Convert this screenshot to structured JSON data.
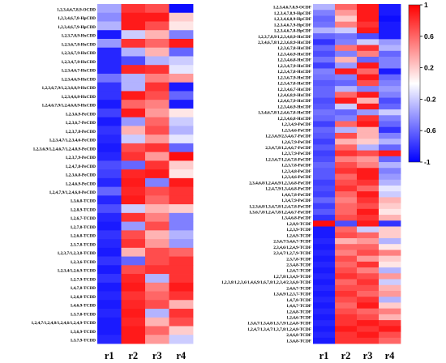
{
  "colors": {
    "low": "#0000ff",
    "mid": "#ffffff",
    "high": "#ff0000"
  },
  "chart_data": [
    {
      "type": "heatmap",
      "x": [
        "r1",
        "r2",
        "r3",
        "r4"
      ],
      "y": [
        "1,2,3,4,6,7,8,9-OCDD",
        "1,2,3,4,6,7,8-HpCDD",
        "1,2,3,4,6,7,9-HpCDD",
        "1,2,3,7,8,9-HxCDD",
        "1,2,3,6,7,8-HxCDD",
        "1,2,3,6,7,9-HxCDD",
        "1,2,3,4,7,8-HxCDD",
        "1,2,3,4,6,7-HxCDD",
        "1,2,3,4,6,9-HxCDD",
        "1,2,3,6,7,9/1,2,3,6,8,9-HxCDD",
        "1,2,3,4,6,8-HxCDD",
        "1,2,4,6,7,9/1,2,4,6,8,9-HxCDD",
        "1,2,3,6,9-PeCDD",
        "1,2,3,6,7-PeCDD",
        "1,2,3,7,8-PeCDD",
        "1,2,3,4,7/1,2,3,4,6-PeCDD",
        "1,2,3,6,9/1,2,4,6,7/1,2,4,8,9-PeCDD",
        "1,2,3,7,9-PeCDD",
        "1,2,4,7,8-PeCDD",
        "1,2,3,6,8-PeCDD",
        "1,2,4,6,9-PeCDD",
        "1,2,4,7,9/1,2,4,6,8-PeCDD",
        "1,3,6,8-TCDD",
        "1,2,8,9-TCDD",
        "1,2,6,7-TCDD",
        "1,2,7,8-TCDD",
        "1,2,6,8-TCDD",
        "2,3,7,8-TCDD",
        "1,2,3,7/1,2,3,8-TCDD",
        "1,2,3,6-TCDD",
        "1,2,3,4/1,2,6,9-TCDD",
        "1,2,7,9-TCDD",
        "1,4,7,8-TCDD",
        "1,2,6,8-TCDD",
        "1,4,6,9-TCDD",
        "1,3,7,8-TCDD",
        "1,2,4,7/1,2,4,8/1,2,4,6/1,2,4,9-TCDD",
        "1,3,6,9-TCDD",
        "1,3,7,9-TCDD"
      ],
      "values": [
        [
          -0.35,
          0.8,
          0.7,
          -0.95
        ],
        [
          -0.45,
          0.9,
          0.9,
          0.2
        ],
        [
          -0.3,
          0.9,
          0.7,
          0.1
        ],
        [
          -0.9,
          -0.2,
          0.3,
          -0.5
        ],
        [
          -0.4,
          0.8,
          0.6,
          0.9
        ],
        [
          -0.85,
          -0.3,
          0.3,
          -0.6
        ],
        [
          -0.85,
          -0.7,
          -0.3,
          -0.2
        ],
        [
          -0.85,
          0.85,
          0.8,
          -0.1
        ],
        [
          -0.55,
          -0.3,
          0.5,
          0.4
        ],
        [
          -0.8,
          -0.3,
          0.8,
          -0.9
        ],
        [
          -0.8,
          0.9,
          0.7,
          -0.6
        ],
        [
          -0.9,
          0.6,
          0.5,
          -0.9
        ],
        [
          -0.75,
          0.9,
          0.4,
          0.1
        ],
        [
          -0.9,
          -0.4,
          0.6,
          -0.2
        ],
        [
          -0.8,
          0.3,
          0.7,
          -0.3
        ],
        [
          -0.85,
          -0.2,
          0.4,
          -0.1
        ],
        [
          -0.9,
          0.7,
          0.8,
          -0.6
        ],
        [
          -0.85,
          0.8,
          0.4,
          0.95
        ],
        [
          -0.7,
          -0.6,
          0.8,
          0.2
        ],
        [
          -0.75,
          0.85,
          0.9,
          0.1
        ],
        [
          -0.85,
          0.9,
          -0.5,
          0.9
        ],
        [
          -0.6,
          0.85,
          0.7,
          0.8
        ],
        [
          -0.85,
          0.9,
          0.6,
          0.8
        ],
        [
          -0.7,
          -0.2,
          0.3,
          0.2
        ],
        [
          -0.85,
          0.8,
          0.5,
          -0.5
        ],
        [
          -0.9,
          -0.4,
          0.7,
          -0.5
        ],
        [
          -0.8,
          0.7,
          0.3,
          -0.3
        ],
        [
          -0.85,
          0.8,
          0.4,
          -0.4
        ],
        [
          -0.9,
          0.3,
          0.7,
          0.6
        ],
        [
          -0.8,
          -0.6,
          0.7,
          0.8
        ],
        [
          -0.9,
          0.7,
          0.8,
          0.8
        ],
        [
          -0.8,
          0.85,
          -0.3,
          0.8
        ],
        [
          -0.9,
          0.9,
          0.5,
          0.9
        ],
        [
          -0.85,
          0.8,
          0.6,
          0.8
        ],
        [
          -0.9,
          0.85,
          0.7,
          0.3
        ],
        [
          -0.85,
          0.9,
          -0.3,
          0.8
        ],
        [
          -0.9,
          0.85,
          0.3,
          0.7
        ],
        [
          -0.9,
          0.9,
          0.6,
          0.2
        ],
        [
          -0.85,
          0.9,
          0.4,
          -0.2
        ]
      ]
    },
    {
      "type": "heatmap",
      "x": [
        "r1",
        "r2",
        "r3",
        "r4"
      ],
      "y": [
        "1,2,3,4,6,7,8,9-OCDF",
        "1,2,3,4,7,8,9-HpCDF",
        "1,2,3,4,6,8,9-HpCDF",
        "1,2,3,4,6,7,9-HpCDF",
        "1,2,3,4,6,7,8-HpCDF",
        "1,2,3,7,8,9/1,2,3,4,8,9-HxCDF",
        "2,3,4,6,7,8/1,2,3,6,8,9-HxCDF",
        "1,2,3,6,7,8-HxCDF",
        "1,2,3,4,6,9-HxCDF",
        "1,2,3,4,6,8-HxCDF",
        "1,2,3,4,7,9-HxCDF",
        "1,2,3,4,7,8-HxCDF",
        "1,2,3,6,7,9-HxCDF",
        "1,2,3,4,7,8-HxCDF",
        "1,2,3,4,6,7-HxCDF",
        "1,2,4,6,8,9-HxCDF",
        "1,2,4,6,7,9-HxCDF",
        "1,2,3,4,6,9-HxCDF",
        "1,3,4,6,7,8/1,2,4,6,7,8-HxCDF",
        "1,2,3,4,6,8-HxCDF",
        "1,2,3,4,9-PeCDF",
        "1,2,3,4,6-PeCDF",
        "1,2,3,6,9/2,3,4,6,7-PeCDF",
        "1,2,6,7,9-PeCDF",
        "2,3,4,7,8/1,2,4,6,7-PeCDF",
        "1,2,3,7,9-PeCDF",
        "1,2,3,6,7/1,2,6,7,8-PeCDF",
        "1,2,3,7,8-PeCDF",
        "1,2,3,4,8-PeCDF",
        "1,2,3,4,6-PeCDF",
        "2,3,4,6,8/1,2,4,6,9/1,2,3,6,8-PeCDF",
        "1,2,4,7,9/1,3,4,6,8-PeCDF",
        "1,4,6,7,8-PeCDF",
        "1,3,4,7,9-PeCDF",
        "1,2,3,6,8/1,3,4,7,8/1,2,4,7,8-PeCDF",
        "1,3,6,7,8/1,2,4,7,8/1,2,4,6,7-PeCDF",
        "1,3,4,6,8-PeCDF",
        "1,2,8,9-TCDF",
        "1,2,3,9-TCDF",
        "1,2,6,9-TCDF",
        "2,3,6,7/3,4,6,7-TCDF",
        "2,3,4,6/1,2,4,9-TCDF",
        "2,3,4,7/1,2,7,9-TCDF",
        "2,3,7,8-TCDF",
        "2,3,4,8-TCDF",
        "1,2,6,7-TCDF",
        "1,2,7,8/1,3,4,9-TCDF",
        "1,2,3,8/1,2,3,6/1,4,6,9/1,6,7,8/1,2,3,4/2,3,6,8-TCDF",
        "2,4,6,7-TCDF",
        "1,3,6,9/1,2,3,7-TCDF",
        "1,4,7,8-TCDF",
        "1,4,6,7-TCDF",
        "1,2,6,8-TCDF",
        "1,2,4,6-TCDF",
        "1,3,6,7/1,3,4,8/1,3,7,9/1,2,4,8-TCDF",
        "1,2,4,7/1,3,4,7/1,3,7,8/1,2,4,8-TCDF",
        "2,4,6,8-TCDF",
        "1,3,6,8-TCDF"
      ],
      "values": [
        [
          -0.3,
          0.6,
          0.9,
          -0.9
        ],
        [
          -0.5,
          0.4,
          0.9,
          -0.9
        ],
        [
          -0.6,
          0.2,
          0.9,
          -0.95
        ],
        [
          -0.55,
          0.5,
          0.8,
          -0.9
        ],
        [
          -0.3,
          -0.2,
          0.9,
          -0.9
        ],
        [
          -0.6,
          -0.55,
          -0.7,
          -0.9
        ],
        [
          -0.8,
          -0.5,
          -0.2,
          -0.4
        ],
        [
          -0.6,
          0.55,
          0.8,
          -0.3
        ],
        [
          -0.7,
          -0.5,
          0.5,
          -0.6
        ],
        [
          -0.55,
          0.3,
          -0.6,
          -0.5
        ],
        [
          -0.75,
          -0.4,
          0.9,
          -0.5
        ],
        [
          -0.5,
          0.9,
          0.6,
          -0.9
        ],
        [
          -0.55,
          -0.5,
          0.9,
          -0.6
        ],
        [
          -0.65,
          -0.6,
          0.7,
          -0.5
        ],
        [
          -0.6,
          -0.3,
          -0.5,
          -0.4
        ],
        [
          -0.6,
          0.6,
          0.9,
          -0.5
        ],
        [
          -0.7,
          0.9,
          0.3,
          -0.7
        ],
        [
          -0.65,
          -0.2,
          0.9,
          -0.6
        ],
        [
          -0.55,
          -0.6,
          -0.4,
          -0.2
        ],
        [
          -0.6,
          -0.5,
          0.8,
          -0.5
        ],
        [
          -0.75,
          0.6,
          0.9,
          -0.6
        ],
        [
          -0.6,
          -0.3,
          0.3,
          -0.8
        ],
        [
          -0.65,
          0.7,
          0.3,
          -0.5
        ],
        [
          -0.75,
          0.3,
          0.2,
          -0.3
        ],
        [
          -0.65,
          0.6,
          -0.3,
          -0.6
        ],
        [
          -0.75,
          0.8,
          0.7,
          0.9
        ],
        [
          -0.7,
          0.5,
          0.4,
          -0.6
        ],
        [
          -0.6,
          0.7,
          0.5,
          -0.3
        ],
        [
          -0.65,
          0.8,
          0.9,
          -0.5
        ],
        [
          -0.65,
          0.6,
          0.9,
          -0.4
        ],
        [
          -0.75,
          0.7,
          0.8,
          -0.3
        ],
        [
          -0.7,
          0.8,
          0.6,
          -0.1
        ],
        [
          -0.75,
          0.6,
          0.9,
          -0.2
        ],
        [
          -0.6,
          0.5,
          0.8,
          0.3
        ],
        [
          -0.75,
          0.6,
          0.7,
          0.2
        ],
        [
          -0.65,
          0.6,
          0.9,
          0.1
        ],
        [
          -0.8,
          0.7,
          0.8,
          0.3
        ],
        [
          0.95,
          -0.7,
          0.9,
          -0.8
        ],
        [
          -0.9,
          0.6,
          -0.2,
          0.2
        ],
        [
          -0.9,
          0.7,
          0.6,
          0.2
        ],
        [
          -0.85,
          0.3,
          0.4,
          -0.3
        ],
        [
          -0.9,
          0.6,
          0.6,
          0.1
        ],
        [
          -0.85,
          0.5,
          0.7,
          0.5
        ],
        [
          -0.9,
          0.7,
          0.4,
          0.2
        ],
        [
          -0.85,
          0.6,
          0.8,
          0.1
        ],
        [
          -0.9,
          0.7,
          0.5,
          -0.3
        ],
        [
          -0.85,
          0.8,
          0.7,
          0.4
        ],
        [
          -0.9,
          0.6,
          0.8,
          -0.2
        ],
        [
          -0.85,
          0.7,
          0.7,
          0.3
        ],
        [
          -0.9,
          0.8,
          0.6,
          0.4
        ],
        [
          -0.85,
          0.7,
          0.8,
          -0.3
        ],
        [
          -0.9,
          0.6,
          0.9,
          0.2
        ],
        [
          -0.85,
          0.7,
          0.6,
          0.5
        ],
        [
          -0.9,
          0.8,
          0.7,
          0.3
        ],
        [
          -0.85,
          0.8,
          0.9,
          0.8
        ],
        [
          -0.9,
          0.9,
          0.8,
          0.9
        ],
        [
          -0.85,
          0.8,
          0.9,
          0.7
        ],
        [
          -0.9,
          0.8,
          0.8,
          0.6
        ]
      ]
    }
  ],
  "colorbar": {
    "min": -1,
    "max": 1,
    "ticks": [
      "1",
      "0.6",
      "0.2",
      "-0.2",
      "-0.6",
      "-1"
    ]
  }
}
